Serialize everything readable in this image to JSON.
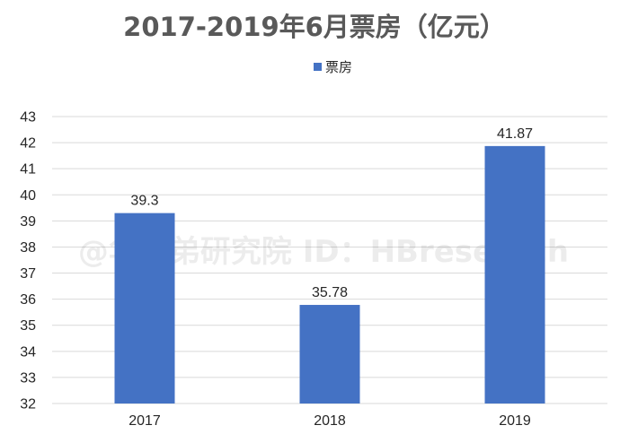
{
  "watermark": "@华兄弟研究院 ID：HBresearch",
  "chart_data": {
    "type": "bar",
    "title": "2017-2019年6月票房（亿元）",
    "categories": [
      "2017",
      "2018",
      "2019"
    ],
    "series": [
      {
        "name": "票房",
        "values": [
          39.3,
          35.78,
          41.87
        ],
        "labels": [
          "39.3",
          "35.78",
          "41.87"
        ]
      }
    ],
    "ylim": [
      32,
      43
    ],
    "yticks": [
      32,
      33,
      34,
      35,
      36,
      37,
      38,
      39,
      40,
      41,
      42,
      43
    ],
    "grid": true,
    "legend_position": "top",
    "colors": {
      "bar": "#4472c4",
      "grid": "#d9d9d9",
      "title": "#595959"
    }
  }
}
